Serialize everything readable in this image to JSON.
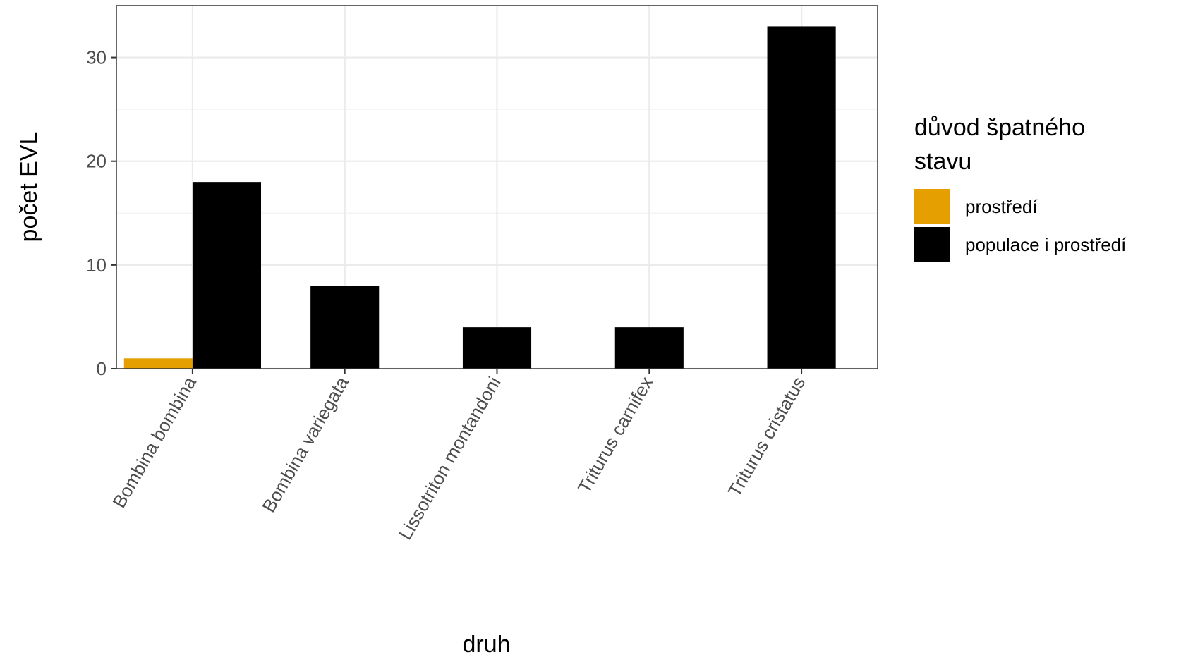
{
  "chart_data": {
    "type": "bar",
    "title": "",
    "xlabel": "druh",
    "ylabel": "počet EVL",
    "categories": [
      "Bombina bombina",
      "Bombina variegata",
      "Lissotriton montandoni",
      "Triturus carnifex",
      "Triturus cristatus"
    ],
    "series": [
      {
        "name": "prostředí",
        "color": "#E69F00",
        "values": [
          1,
          null,
          null,
          null,
          null
        ]
      },
      {
        "name": "populace i prostředí",
        "color": "#000000",
        "values": [
          18,
          8,
          4,
          4,
          33
        ]
      }
    ],
    "barmode": "dodge",
    "ylim": [
      0,
      35
    ],
    "yticks": [
      0,
      10,
      20,
      30
    ],
    "grid": true,
    "legend": {
      "title_lines": [
        "důvod špatného",
        "stavu"
      ],
      "placement": "right"
    }
  }
}
